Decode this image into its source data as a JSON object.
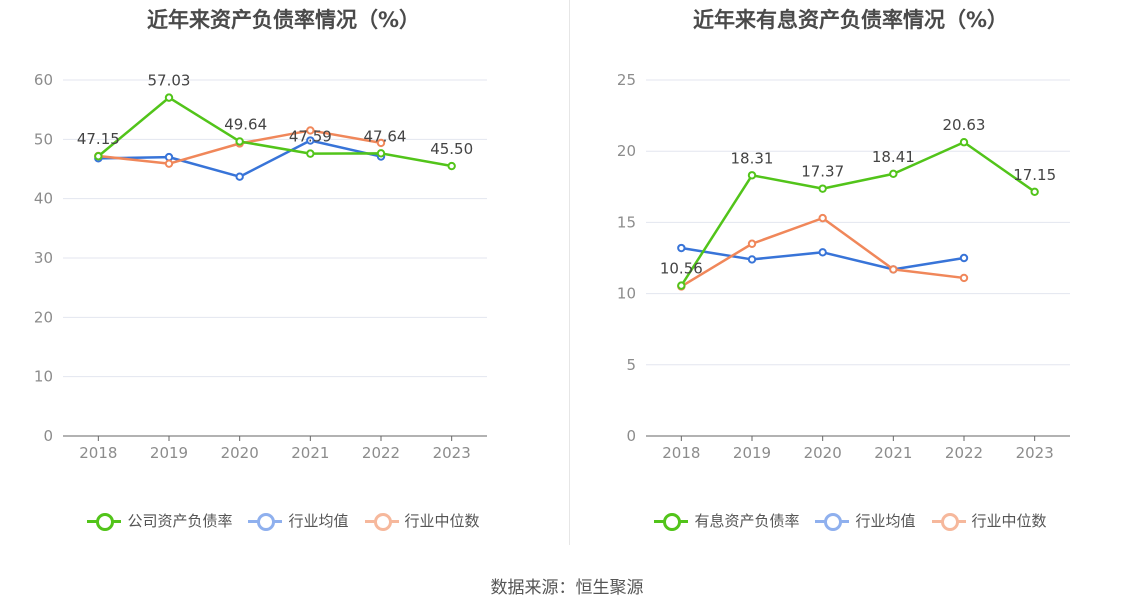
{
  "source": "数据来源：恒生聚源",
  "chart_data": [
    {
      "type": "line",
      "title": "近年来资产负债率情况（%）",
      "categories": [
        "2018",
        "2019",
        "2020",
        "2021",
        "2022",
        "2023"
      ],
      "ylim": [
        0,
        60
      ],
      "yticks": [
        "0",
        "10",
        "20",
        "30",
        "40",
        "50",
        "60"
      ],
      "grid": true,
      "legend_position": "bottom",
      "series": [
        {
          "name": "公司资产负债率",
          "color": "#52c41a",
          "values": [
            47.15,
            57.03,
            49.64,
            47.59,
            47.64,
            45.5
          ],
          "labels": [
            "47.15",
            "57.03",
            "49.64",
            "47.59",
            "47.64",
            "45.50"
          ]
        },
        {
          "name": "行业均值",
          "color": "#3874d8",
          "values": [
            46.8,
            47.0,
            43.7,
            49.8,
            47.1,
            null
          ]
        },
        {
          "name": "行业中位数",
          "color": "#f0875a",
          "values": [
            47.2,
            45.9,
            49.3,
            51.5,
            49.4,
            null
          ]
        }
      ]
    },
    {
      "type": "line",
      "title": "近年来有息资产负债率情况（%）",
      "categories": [
        "2018",
        "2019",
        "2020",
        "2021",
        "2022",
        "2023"
      ],
      "ylim": [
        0,
        25
      ],
      "yticks": [
        "0",
        "5",
        "10",
        "15",
        "20",
        "25"
      ],
      "grid": true,
      "legend_position": "bottom",
      "series": [
        {
          "name": "有息资产负债率",
          "color": "#52c41a",
          "values": [
            10.56,
            18.31,
            17.37,
            18.41,
            20.63,
            17.15
          ],
          "labels": [
            "10.56",
            "18.31",
            "17.37",
            "18.41",
            "20.63",
            "17.15"
          ]
        },
        {
          "name": "行业均值",
          "color": "#3874d8",
          "values": [
            13.2,
            12.4,
            12.9,
            11.7,
            12.5,
            null
          ]
        },
        {
          "name": "行业中位数",
          "color": "#f0875a",
          "values": [
            10.5,
            13.5,
            15.3,
            11.7,
            11.1,
            null
          ]
        }
      ]
    }
  ]
}
